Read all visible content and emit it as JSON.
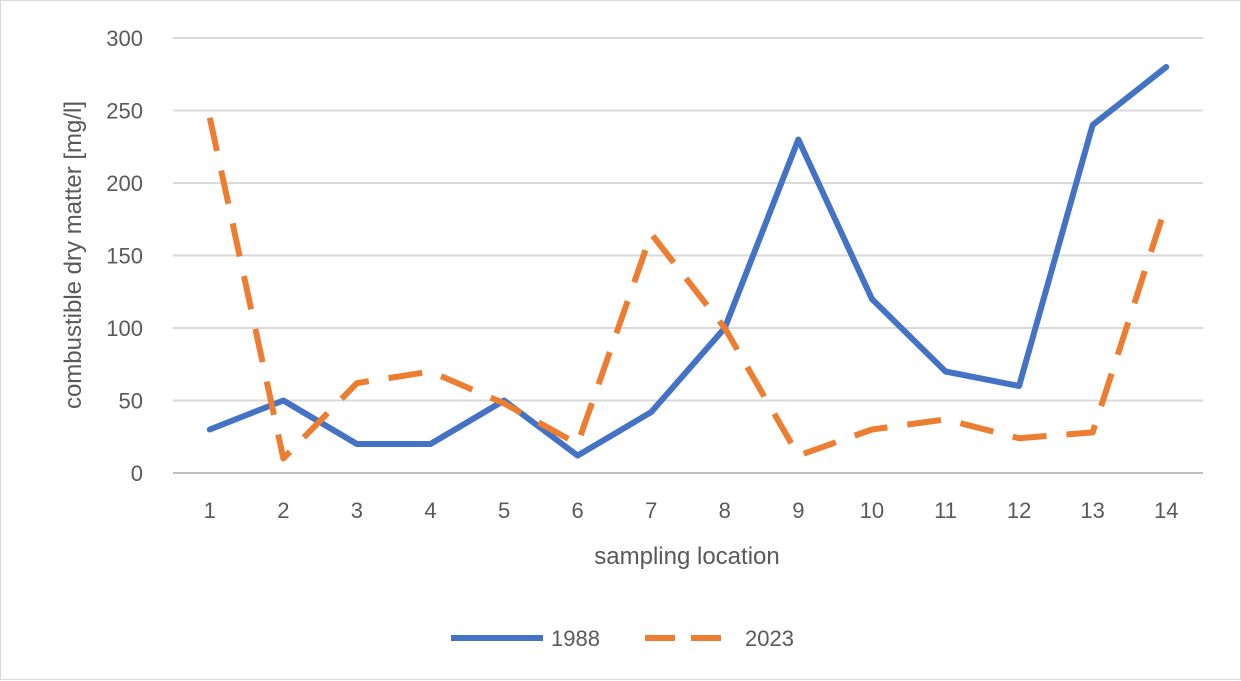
{
  "chart_data": {
    "type": "line",
    "title": "",
    "xlabel": "sampling location",
    "ylabel": "combustible dry matter [mg/l]",
    "categories": [
      "1",
      "2",
      "3",
      "4",
      "5",
      "6",
      "7",
      "8",
      "9",
      "10",
      "11",
      "12",
      "13",
      "14"
    ],
    "ylim": [
      0,
      300
    ],
    "yticks": [
      "0",
      "50",
      "100",
      "150",
      "200",
      "250",
      "300"
    ],
    "grid": true,
    "legend_position": "bottom",
    "series": [
      {
        "name": "1988",
        "color": "#4472C4",
        "style": "solid",
        "values": [
          30,
          50,
          20,
          20,
          50,
          12,
          42,
          100,
          230,
          120,
          70,
          60,
          240,
          280
        ]
      },
      {
        "name": "2023",
        "color": "#ED7D31",
        "style": "dashed",
        "values": [
          245,
          10,
          62,
          70,
          48,
          20,
          165,
          100,
          12,
          30,
          37,
          24,
          28,
          185
        ]
      }
    ]
  }
}
